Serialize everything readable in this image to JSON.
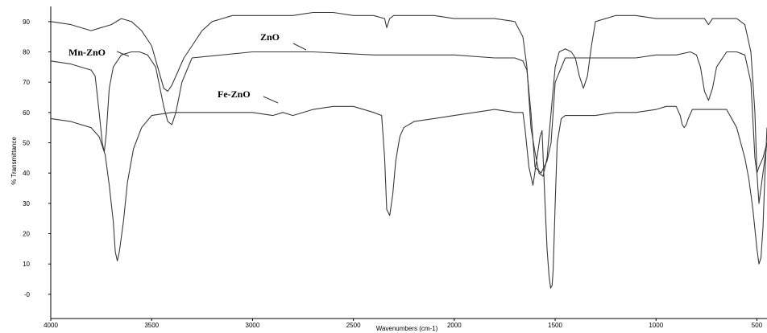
{
  "chart_data": {
    "type": "line",
    "xlabel": "Wavenumbers (cm-1)",
    "ylabel": "% Transmittance",
    "xlim": [
      4000,
      450
    ],
    "ylim": [
      -8,
      95
    ],
    "x_reversed": true,
    "grid": false,
    "x_ticks": [
      {
        "value": 4000,
        "label": "4000"
      },
      {
        "value": 3500,
        "label": "3500"
      },
      {
        "value": 3000,
        "label": "3000"
      },
      {
        "value": 2500,
        "label": "2500"
      },
      {
        "value": 2000,
        "label": "2000"
      },
      {
        "value": 1500,
        "label": "1500"
      },
      {
        "value": 1000,
        "label": "1000"
      },
      {
        "value": 500,
        "label": "500"
      }
    ],
    "y_ticks": [
      {
        "value": 90,
        "label": "90"
      },
      {
        "value": 80,
        "label": "80"
      },
      {
        "value": 70,
        "label": "70"
      },
      {
        "value": 60,
        "label": "60"
      },
      {
        "value": 50,
        "label": "50"
      },
      {
        "value": 40,
        "label": "40"
      },
      {
        "value": 30,
        "label": "30"
      },
      {
        "value": 20,
        "label": "20"
      },
      {
        "value": 10,
        "label": "10"
      },
      {
        "value": 0,
        "label": "-0"
      }
    ],
    "series": [
      {
        "name": "ZnO",
        "color": "#3a3a3a",
        "x": [
          4000,
          3900,
          3800,
          3700,
          3650,
          3600,
          3550,
          3500,
          3470,
          3440,
          3420,
          3400,
          3380,
          3340,
          3300,
          3250,
          3200,
          3150,
          3100,
          3000,
          2900,
          2800,
          2700,
          2600,
          2500,
          2400,
          2345,
          2335,
          2320,
          2300,
          2200,
          2100,
          2000,
          1900,
          1800,
          1700,
          1660,
          1640,
          1630,
          1620,
          1600,
          1580,
          1560,
          1540,
          1520,
          1500,
          1480,
          1450,
          1420,
          1400,
          1380,
          1360,
          1340,
          1320,
          1300,
          1200,
          1100,
          1000,
          900,
          760,
          740,
          720,
          600,
          560,
          530,
          510,
          500,
          490,
          470,
          450
        ],
        "y": [
          90,
          89,
          87,
          89,
          91,
          90,
          87,
          82,
          75,
          68,
          67,
          69,
          72,
          78,
          82,
          87,
          90,
          91,
          92,
          92,
          92,
          92,
          93,
          93,
          92,
          92,
          91,
          88,
          91,
          92,
          92,
          92,
          91,
          91,
          91,
          90,
          85,
          75,
          65,
          55,
          47,
          40,
          39,
          45,
          60,
          75,
          80,
          81,
          80,
          78,
          72,
          68,
          72,
          82,
          90,
          92,
          92,
          91,
          91,
          91,
          89,
          91,
          91,
          89,
          80,
          60,
          40,
          30,
          40,
          50
        ]
      },
      {
        "name": "Mn-ZnO",
        "color": "#3a3a3a",
        "x": [
          4000,
          3900,
          3800,
          3780,
          3760,
          3745,
          3735,
          3725,
          3710,
          3690,
          3650,
          3600,
          3560,
          3520,
          3480,
          3440,
          3420,
          3400,
          3380,
          3350,
          3300,
          3000,
          2700,
          2400,
          2200,
          2000,
          1800,
          1700,
          1660,
          1640,
          1620,
          1600,
          1570,
          1540,
          1520,
          1500,
          1450,
          1400,
          1300,
          1200,
          1100,
          1000,
          900,
          830,
          800,
          780,
          760,
          740,
          720,
          700,
          650,
          600,
          560,
          530,
          510,
          500,
          490,
          470,
          450
        ],
        "y": [
          77,
          76,
          74,
          72,
          60,
          50,
          47,
          53,
          68,
          75,
          79,
          80,
          80,
          79,
          75,
          62,
          57,
          56,
          60,
          70,
          78,
          80,
          80,
          79,
          79,
          79,
          78,
          78,
          77,
          74,
          60,
          42,
          40,
          44,
          50,
          70,
          78,
          78,
          78,
          78,
          78,
          79,
          79,
          80,
          79,
          75,
          67,
          64,
          68,
          75,
          80,
          80,
          79,
          70,
          45,
          40,
          42,
          45,
          50
        ]
      },
      {
        "name": "Fe-ZnO",
        "color": "#3a3a3a",
        "x": [
          4000,
          3900,
          3800,
          3760,
          3730,
          3710,
          3690,
          3680,
          3670,
          3660,
          3640,
          3620,
          3590,
          3550,
          3500,
          3400,
          3300,
          3200,
          3100,
          3000,
          2900,
          2850,
          2800,
          2700,
          2600,
          2500,
          2400,
          2360,
          2345,
          2335,
          2320,
          2305,
          2290,
          2270,
          2250,
          2200,
          2100,
          2000,
          1900,
          1800,
          1700,
          1660,
          1650,
          1630,
          1610,
          1590,
          1575,
          1565,
          1550,
          1540,
          1530,
          1522,
          1515,
          1510,
          1500,
          1490,
          1470,
          1450,
          1400,
          1300,
          1200,
          1100,
          1000,
          950,
          900,
          880,
          870,
          860,
          850,
          840,
          820,
          800,
          780,
          760,
          740,
          720,
          700,
          650,
          600,
          580,
          560,
          540,
          520,
          500,
          490,
          480,
          470,
          460,
          450
        ],
        "y": [
          58,
          57,
          55,
          52,
          46,
          36,
          24,
          14,
          11,
          14,
          24,
          37,
          48,
          55,
          59,
          60,
          60,
          60,
          60,
          60,
          59,
          60,
          59,
          61,
          62,
          62,
          60,
          59,
          45,
          28,
          26,
          33,
          44,
          52,
          55,
          57,
          58,
          59,
          60,
          61,
          60,
          60,
          55,
          42,
          36,
          45,
          52,
          54,
          30,
          15,
          6,
          2,
          3,
          8,
          30,
          50,
          58,
          59,
          59,
          59,
          60,
          60,
          61,
          62,
          62,
          59,
          56,
          55,
          56,
          58,
          61,
          61,
          61,
          61,
          61,
          61,
          61,
          61,
          55,
          50,
          45,
          38,
          28,
          15,
          10,
          12,
          22,
          40,
          55
        ]
      }
    ],
    "annotations": [
      {
        "text": "ZnO",
        "series": "ZnO"
      },
      {
        "text": "Mn-ZnO",
        "series": "Mn-ZnO"
      },
      {
        "text": "Fe-ZnO",
        "series": "Fe-ZnO"
      }
    ]
  }
}
